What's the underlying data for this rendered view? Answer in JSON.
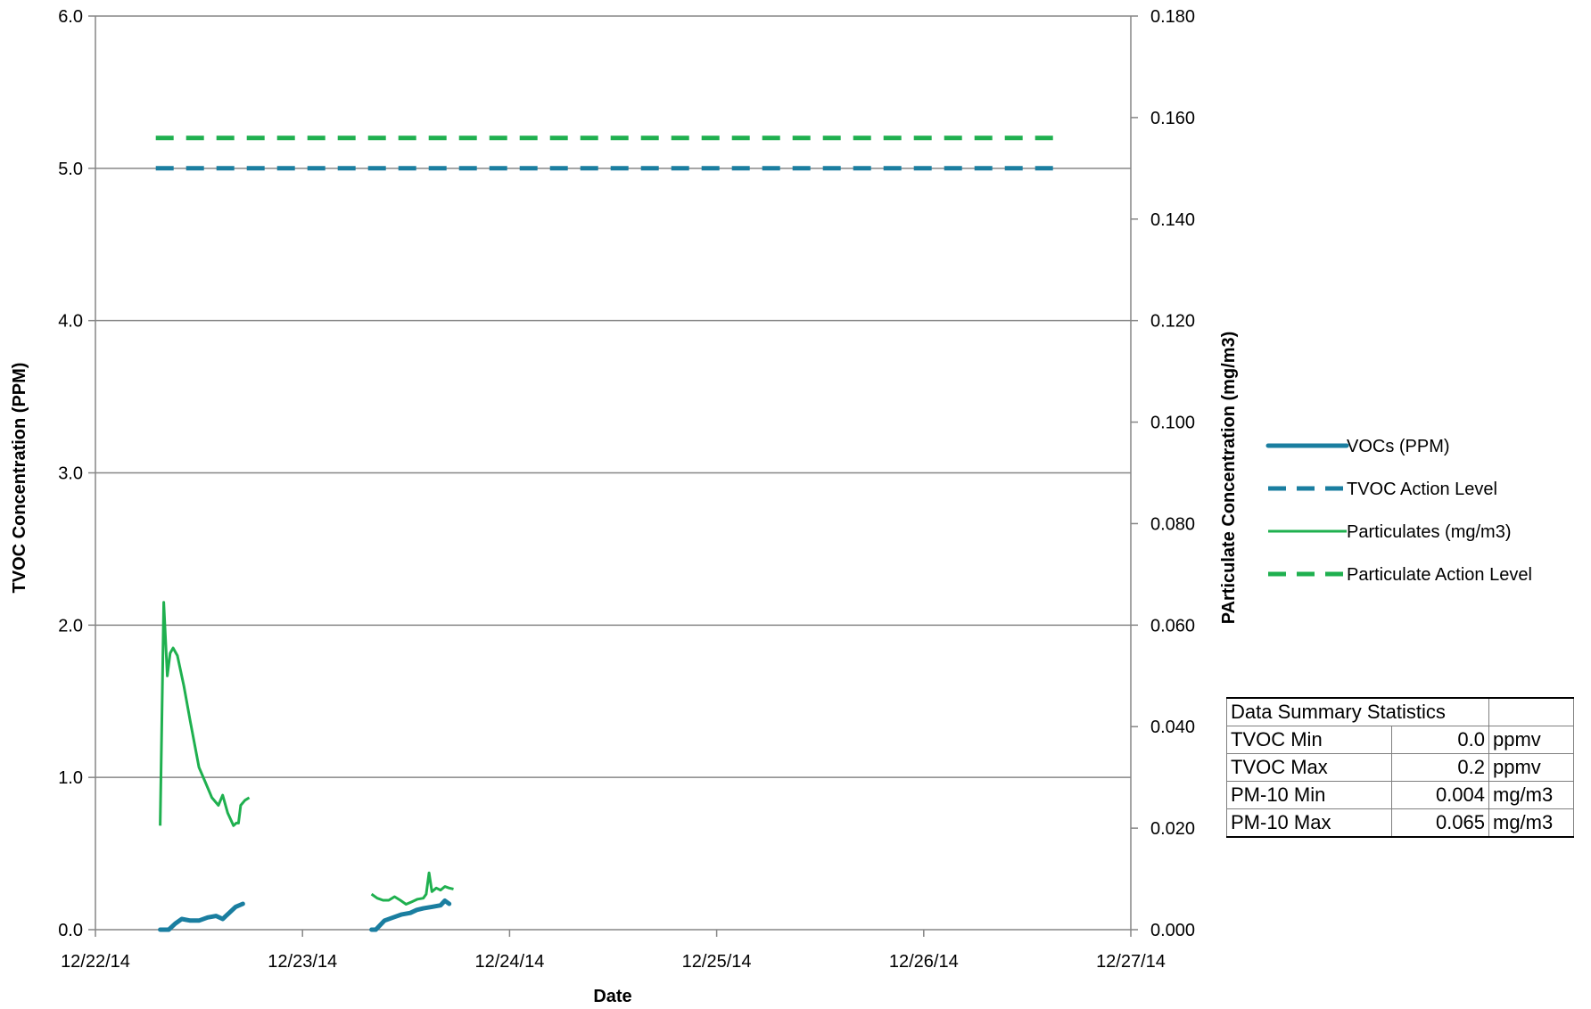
{
  "chart_data": {
    "type": "line",
    "xlabel": "Date",
    "ylabel_left": "TVOC Concentration (PPM)",
    "ylabel_right": "PArticulate Concentration (mg/m3)",
    "x_ticks": [
      "12/22/14",
      "12/23/14",
      "12/24/14",
      "12/25/14",
      "12/26/14",
      "12/27/14"
    ],
    "x_range": [
      "12/22/14 00:00",
      "12/27/14 00:00"
    ],
    "y_left_ticks": [
      "0.0",
      "1.0",
      "2.0",
      "3.0",
      "4.0",
      "5.0",
      "6.0"
    ],
    "y_left_range": [
      0,
      6
    ],
    "y_right_ticks": [
      "0.000",
      "0.020",
      "0.040",
      "0.060",
      "0.080",
      "0.100",
      "0.120",
      "0.140",
      "0.160",
      "0.180"
    ],
    "y_right_range": [
      0,
      0.18
    ],
    "grid": "horizontal major gridlines",
    "legend_position": "right",
    "series": [
      {
        "name": "VOCs (PPM)",
        "axis": "left",
        "color": "#1a7ea0",
        "style": "solid-thick",
        "segments": [
          [
            [
              "12/22/14 07:30",
              0.0
            ],
            [
              "12/22/14 08:30",
              0.0
            ],
            [
              "12/22/14 09:15",
              0.04
            ],
            [
              "12/22/14 10:00",
              0.07
            ],
            [
              "12/22/14 11:00",
              0.06
            ],
            [
              "12/22/14 12:00",
              0.06
            ],
            [
              "12/22/14 13:00",
              0.08
            ],
            [
              "12/22/14 14:00",
              0.09
            ],
            [
              "12/22/14 14:45",
              0.07
            ],
            [
              "12/22/14 15:30",
              0.11
            ],
            [
              "12/22/14 16:15",
              0.15
            ],
            [
              "12/22/14 17:05",
              0.17
            ]
          ],
          [
            [
              "12/23/14 08:00",
              0.0
            ],
            [
              "12/23/14 08:30",
              0.0
            ],
            [
              "12/23/14 09:30",
              0.06
            ],
            [
              "12/23/14 10:30",
              0.08
            ],
            [
              "12/23/14 11:30",
              0.1
            ],
            [
              "12/23/14 12:30",
              0.11
            ],
            [
              "12/23/14 13:15",
              0.13
            ],
            [
              "12/23/14 14:00",
              0.14
            ],
            [
              "12/23/14 15:00",
              0.15
            ],
            [
              "12/23/14 16:00",
              0.16
            ],
            [
              "12/23/14 16:30",
              0.19
            ],
            [
              "12/23/14 17:00",
              0.17
            ]
          ]
        ]
      },
      {
        "name": "TVOC Action Level",
        "axis": "left",
        "color": "#1a7ea0",
        "style": "dashed",
        "segments": [
          [
            [
              "12/22/14 07:00",
              5.0
            ],
            [
              "12/26/14 16:00",
              5.0
            ]
          ]
        ]
      },
      {
        "name": "Particulates (mg/m3)",
        "axis": "right",
        "color": "#1fb04f",
        "style": "solid-thin",
        "segments": [
          [
            [
              "12/22/14 07:30",
              0.0205
            ],
            [
              "12/22/14 07:55",
              0.0645
            ],
            [
              "12/22/14 08:20",
              0.05
            ],
            [
              "12/22/14 08:40",
              0.0545
            ],
            [
              "12/22/14 09:00",
              0.0555
            ],
            [
              "12/22/14 09:30",
              0.054
            ],
            [
              "12/22/14 10:15",
              0.048
            ],
            [
              "12/22/14 11:00",
              0.041
            ],
            [
              "12/22/14 12:00",
              0.032
            ],
            [
              "12/22/14 12:45",
              0.029
            ],
            [
              "12/22/14 13:30",
              0.026
            ],
            [
              "12/22/14 14:15",
              0.0245
            ],
            [
              "12/22/14 14:45",
              0.0265
            ],
            [
              "12/22/14 15:20",
              0.023
            ],
            [
              "12/22/14 16:00",
              0.0205
            ],
            [
              "12/22/14 16:20",
              0.021
            ],
            [
              "12/22/14 16:35",
              0.021
            ],
            [
              "12/22/14 16:50",
              0.0245
            ],
            [
              "12/22/14 17:20",
              0.0255
            ],
            [
              "12/22/14 17:50",
              0.026
            ]
          ],
          [
            [
              "12/23/14 08:00",
              0.007
            ],
            [
              "12/23/14 08:40",
              0.0062
            ],
            [
              "12/23/14 09:20",
              0.0058
            ],
            [
              "12/23/14 10:00",
              0.0058
            ],
            [
              "12/23/14 10:40",
              0.0065
            ],
            [
              "12/23/14 11:20",
              0.0058
            ],
            [
              "12/23/14 12:00",
              0.005
            ],
            [
              "12/23/14 12:40",
              0.0055
            ],
            [
              "12/23/14 13:20",
              0.006
            ],
            [
              "12/23/14 14:00",
              0.0062
            ],
            [
              "12/23/14 14:20",
              0.007
            ],
            [
              "12/23/14 14:40",
              0.0112
            ],
            [
              "12/23/14 15:00",
              0.0075
            ],
            [
              "12/23/14 15:30",
              0.0082
            ],
            [
              "12/23/14 16:00",
              0.0078
            ],
            [
              "12/23/14 16:30",
              0.0085
            ],
            [
              "12/23/14 17:00",
              0.0082
            ],
            [
              "12/23/14 17:30",
              0.008
            ]
          ]
        ]
      },
      {
        "name": "Particulate Action Level",
        "axis": "right",
        "color": "#1fb04f",
        "style": "dashed",
        "segments": [
          [
            [
              "12/22/14 07:00",
              0.156
            ],
            [
              "12/26/14 16:00",
              0.156
            ]
          ]
        ]
      }
    ]
  },
  "stats_table": {
    "title": "Data Summary Statistics",
    "rows": [
      {
        "label": "TVOC Min",
        "value": "0.0",
        "unit": "ppmv"
      },
      {
        "label": "TVOC Max",
        "value": "0.2",
        "unit": "ppmv"
      },
      {
        "label": "PM-10 Min",
        "value": "0.004",
        "unit": "mg/m3"
      },
      {
        "label": "PM-10 Max",
        "value": "0.065",
        "unit": "mg/m3"
      }
    ]
  }
}
